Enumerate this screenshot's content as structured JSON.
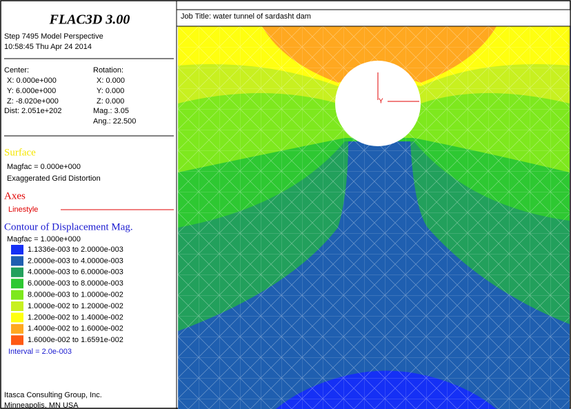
{
  "header": {
    "title": "FLAC3D 3.00",
    "step": "Step 7495  Model Perspective",
    "timestamp": "10:58:45 Thu Apr 24 2014"
  },
  "view": {
    "center_label": "Center:",
    "center_x": "X: 0.000e+000",
    "center_y": "Y: 6.000e+000",
    "center_z": "Z: -8.020e+000",
    "dist": "Dist: 2.051e+202",
    "rotation_label": "Rotation:",
    "rotation_x": "X:  0.000",
    "rotation_y": "Y:  0.000",
    "rotation_z": "Z:  0.000",
    "mag": "Mag.:    3.05",
    "ang": "Ang.: 22.500"
  },
  "surface": {
    "title": "Surface",
    "magfac": "Magfac = 0.000e+000",
    "note": "Exaggerated Grid Distortion"
  },
  "axes": {
    "title": "Axes",
    "linestyle": "Linestyle"
  },
  "contour": {
    "title": "Contour of Displacement Mag.",
    "magfac": "Magfac = 1.000e+000",
    "legend": [
      {
        "label": "1.1336e-003 to  2.0000e-003",
        "color": "#1530f5"
      },
      {
        "label": "2.0000e-003 to  4.0000e-003",
        "color": "#1f5fb0"
      },
      {
        "label": "4.0000e-003 to  6.0000e-003",
        "color": "#22a05c"
      },
      {
        "label": "6.0000e-003 to  8.0000e-003",
        "color": "#2ec832"
      },
      {
        "label": "8.0000e-003 to  1.0000e-002",
        "color": "#7ee81e"
      },
      {
        "label": "1.0000e-002 to  1.2000e-002",
        "color": "#c8f020"
      },
      {
        "label": "1.2000e-002 to  1.4000e-002",
        "color": "#ffff10"
      },
      {
        "label": "1.4000e-002 to  1.6000e-002",
        "color": "#ffa820"
      },
      {
        "label": "1.6000e-002 to  1.6591e-002",
        "color": "#ff5a14"
      }
    ],
    "interval": "Interval = 2.0e-003"
  },
  "footer": {
    "company": "Itasca Consulting Group, Inc.",
    "location": "Minneapolis, MN  USA"
  },
  "plot": {
    "job_title": "Job Title: water tunnel of sardasht dam",
    "axis_label": "Y"
  }
}
